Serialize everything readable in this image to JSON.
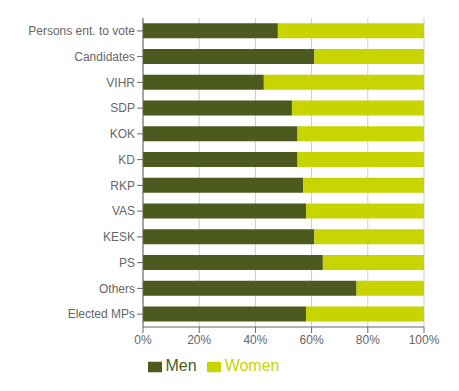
{
  "chart_data": {
    "type": "bar",
    "orientation": "horizontal",
    "stacked": true,
    "categories": [
      "Persons ent. to vote",
      "Candidates",
      "VIHR",
      "SDP",
      "KOK",
      "KD",
      "RKP",
      "VAS",
      "KESK",
      "PS",
      "Others",
      "Elected MPs"
    ],
    "series": [
      {
        "name": "Men",
        "color": "#4d5a1e",
        "values": [
          48,
          61,
          43,
          53,
          55,
          55,
          57,
          58,
          61,
          64,
          76,
          58
        ]
      },
      {
        "name": "Women",
        "color": "#c8d400",
        "values": [
          52,
          39,
          57,
          47,
          45,
          45,
          43,
          42,
          39,
          36,
          24,
          42
        ]
      }
    ],
    "xlim": [
      0,
      100
    ],
    "xticks": [
      {
        "value": 0,
        "label": "0%"
      },
      {
        "value": 20,
        "label": "20%"
      },
      {
        "value": 40,
        "label": "40%"
      },
      {
        "value": 60,
        "label": "60%"
      },
      {
        "value": 80,
        "label": "80%"
      },
      {
        "value": 100,
        "label": "100%"
      }
    ],
    "grid": true,
    "legend": "bottom"
  }
}
